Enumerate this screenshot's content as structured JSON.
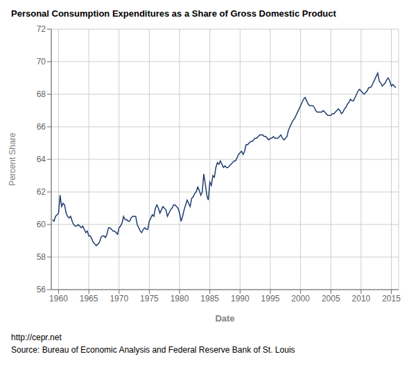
{
  "chart_data": {
    "type": "line",
    "title": "Personal Consumption Expenditures as a Share of Gross Domestic Product",
    "xlabel": "Date",
    "ylabel": "Percent Share",
    "color": "#1f3d6e",
    "grid": true,
    "xlim": [
      1958.8,
      2016.2
    ],
    "ylim": [
      56,
      72
    ],
    "xticks": [
      1960,
      1965,
      1970,
      1975,
      1980,
      1985,
      1990,
      1995,
      2000,
      2005,
      2010,
      2015
    ],
    "yticks": [
      56,
      58,
      60,
      62,
      64,
      66,
      68,
      70,
      72
    ],
    "annotations": [
      "http://cepr.net",
      "Source: Bureau of Economic Analysis and Federal Reserve Bank of St. Louis"
    ],
    "x": [
      1959.0,
      1959.25,
      1959.5,
      1959.75,
      1960.0,
      1960.25,
      1960.5,
      1960.75,
      1961.0,
      1961.25,
      1961.5,
      1961.75,
      1962.0,
      1962.25,
      1962.5,
      1962.75,
      1963.0,
      1963.25,
      1963.5,
      1963.75,
      1964.0,
      1964.25,
      1964.5,
      1964.75,
      1965.0,
      1965.25,
      1965.5,
      1965.75,
      1966.0,
      1966.25,
      1966.5,
      1966.75,
      1967.0,
      1967.25,
      1967.5,
      1967.75,
      1968.0,
      1968.25,
      1968.5,
      1968.75,
      1969.0,
      1969.25,
      1969.5,
      1969.75,
      1970.0,
      1970.25,
      1970.5,
      1970.75,
      1971.0,
      1971.25,
      1971.5,
      1971.75,
      1972.0,
      1972.25,
      1972.5,
      1972.75,
      1973.0,
      1973.25,
      1973.5,
      1973.75,
      1974.0,
      1974.25,
      1974.5,
      1974.75,
      1975.0,
      1975.25,
      1975.5,
      1975.75,
      1976.0,
      1976.25,
      1976.5,
      1976.75,
      1977.0,
      1977.25,
      1977.5,
      1977.75,
      1978.0,
      1978.25,
      1978.5,
      1978.75,
      1979.0,
      1979.25,
      1979.5,
      1979.75,
      1980.0,
      1980.25,
      1980.5,
      1980.75,
      1981.0,
      1981.25,
      1981.5,
      1981.75,
      1982.0,
      1982.25,
      1982.5,
      1982.75,
      1983.0,
      1983.25,
      1983.5,
      1983.75,
      1984.0,
      1984.25,
      1984.5,
      1984.75,
      1985.0,
      1985.25,
      1985.5,
      1985.75,
      1986.0,
      1986.25,
      1986.5,
      1986.75,
      1987.0,
      1987.25,
      1987.5,
      1987.75,
      1988.0,
      1988.25,
      1988.5,
      1988.75,
      1989.0,
      1989.25,
      1989.5,
      1989.75,
      1990.0,
      1990.25,
      1990.5,
      1990.75,
      1991.0,
      1991.25,
      1991.5,
      1991.75,
      1992.0,
      1992.25,
      1992.5,
      1992.75,
      1993.0,
      1993.25,
      1993.5,
      1993.75,
      1994.0,
      1994.25,
      1994.5,
      1994.75,
      1995.0,
      1995.25,
      1995.5,
      1995.75,
      1996.0,
      1996.25,
      1996.5,
      1996.75,
      1997.0,
      1997.25,
      1997.5,
      1997.75,
      1998.0,
      1998.25,
      1998.5,
      1998.75,
      1999.0,
      1999.25,
      1999.5,
      1999.75,
      2000.0,
      2000.25,
      2000.5,
      2000.75,
      2001.0,
      2001.25,
      2001.5,
      2001.75,
      2002.0,
      2002.25,
      2002.5,
      2002.75,
      2003.0,
      2003.25,
      2003.5,
      2003.75,
      2004.0,
      2004.25,
      2004.5,
      2004.75,
      2005.0,
      2005.25,
      2005.5,
      2005.75,
      2006.0,
      2006.25,
      2006.5,
      2006.75,
      2007.0,
      2007.25,
      2007.5,
      2007.75,
      2008.0,
      2008.25,
      2008.5,
      2008.75,
      2009.0,
      2009.25,
      2009.5,
      2009.75,
      2010.0,
      2010.25,
      2010.5,
      2010.75,
      2011.0,
      2011.25,
      2011.5,
      2011.75,
      2012.0,
      2012.25,
      2012.5,
      2012.75,
      2013.0,
      2013.25,
      2013.5,
      2013.75,
      2014.0,
      2014.25,
      2014.5,
      2014.75,
      2015.0,
      2015.25,
      2015.5,
      2015.75
    ],
    "values": [
      60.3,
      60.2,
      60.5,
      60.6,
      60.7,
      61.8,
      61.1,
      61.3,
      61.2,
      60.7,
      60.5,
      60.4,
      60.5,
      60.2,
      60.0,
      59.9,
      59.9,
      60.0,
      59.9,
      59.8,
      59.9,
      59.7,
      59.5,
      59.6,
      59.3,
      59.3,
      59.1,
      58.9,
      58.8,
      58.7,
      58.8,
      58.9,
      59.2,
      59.3,
      59.3,
      59.2,
      59.4,
      59.8,
      59.8,
      59.7,
      59.6,
      59.6,
      59.5,
      59.4,
      59.8,
      59.9,
      60.1,
      60.5,
      60.3,
      60.3,
      60.2,
      60.2,
      60.4,
      60.5,
      60.5,
      60.5,
      60.0,
      59.8,
      59.6,
      59.5,
      59.7,
      59.8,
      59.7,
      59.7,
      60.2,
      60.4,
      60.6,
      60.5,
      61.0,
      61.2,
      61.0,
      60.7,
      60.9,
      61.1,
      61.0,
      60.9,
      60.5,
      60.7,
      60.9,
      61.0,
      61.2,
      61.2,
      61.1,
      61.0,
      60.7,
      60.2,
      60.5,
      60.9,
      61.2,
      61.5,
      61.3,
      61.1,
      61.6,
      61.7,
      61.9,
      62.0,
      62.3,
      62.1,
      61.8,
      62.0,
      63.1,
      62.5,
      61.8,
      61.5,
      62.6,
      62.4,
      63.0,
      62.9,
      63.5,
      63.8,
      63.7,
      63.9,
      63.7,
      63.5,
      63.6,
      63.5,
      63.5,
      63.6,
      63.7,
      63.8,
      63.9,
      63.9,
      64.1,
      64.3,
      64.4,
      64.5,
      64.3,
      64.5,
      64.9,
      64.9,
      65.0,
      65.1,
      65.1,
      65.2,
      65.3,
      65.3,
      65.4,
      65.5,
      65.5,
      65.5,
      65.4,
      65.4,
      65.3,
      65.2,
      65.3,
      65.3,
      65.4,
      65.3,
      65.3,
      65.3,
      65.4,
      65.5,
      65.3,
      65.2,
      65.3,
      65.4,
      65.8,
      66.0,
      66.2,
      66.4,
      66.5,
      66.7,
      66.9,
      67.1,
      67.3,
      67.5,
      67.7,
      67.8,
      67.6,
      67.4,
      67.3,
      67.3,
      67.3,
      67.2,
      67.0,
      66.9,
      66.9,
      66.9,
      66.9,
      67.0,
      66.9,
      66.8,
      66.7,
      66.7,
      66.7,
      66.8,
      66.8,
      66.9,
      67.0,
      67.1,
      67.0,
      66.8,
      66.9,
      67.1,
      67.2,
      67.4,
      67.5,
      67.7,
      67.6,
      67.6,
      67.8,
      68.0,
      68.2,
      68.3,
      68.2,
      68.1,
      68.0,
      68.1,
      68.2,
      68.4,
      68.4,
      68.5,
      68.7,
      68.9,
      69.1,
      69.3,
      68.8,
      68.7,
      68.5,
      68.6,
      68.7,
      68.9,
      69.0,
      68.8,
      68.5,
      68.6,
      68.5,
      68.4
    ]
  }
}
